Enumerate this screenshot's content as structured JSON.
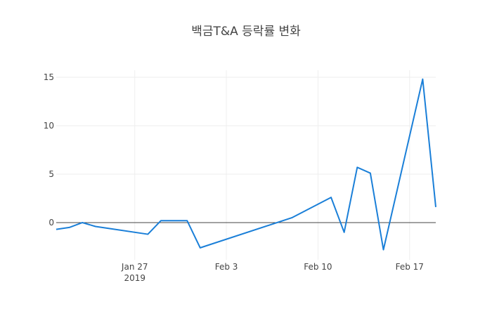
{
  "chart_data": {
    "type": "line",
    "title": "백금T&A 등락률 변화",
    "x": [
      "2019-01-21",
      "2019-01-22",
      "2019-01-23",
      "2019-01-24",
      "2019-01-25",
      "2019-01-28",
      "2019-01-29",
      "2019-01-30",
      "2019-01-31",
      "2019-02-01",
      "2019-02-08",
      "2019-02-11",
      "2019-02-12",
      "2019-02-13",
      "2019-02-14",
      "2019-02-15",
      "2019-02-18",
      "2019-02-19"
    ],
    "series": [
      {
        "color": "#1a7fd8",
        "values": [
          -0.7,
          -0.5,
          0,
          -0.4,
          -0.6,
          -1.2,
          0.2,
          0.2,
          0.2,
          -2.6,
          0.5,
          2.6,
          -1.0,
          5.7,
          5.1,
          -2.8,
          14.8,
          1.6
        ]
      }
    ],
    "xlim": [
      "2019-01-21",
      "2019-02-19"
    ],
    "xticks": [
      {
        "value": "2019-01-27",
        "label": "Jan 27\n2019"
      },
      {
        "value": "2019-02-03",
        "label": "Feb 3"
      },
      {
        "value": "2019-02-10",
        "label": "Feb 10"
      },
      {
        "value": "2019-02-17",
        "label": "Feb 17"
      }
    ],
    "ylim": [
      -3.84,
      15.72
    ],
    "yticks": [
      0,
      5,
      10,
      15
    ],
    "grid": true,
    "zeroline": true
  }
}
